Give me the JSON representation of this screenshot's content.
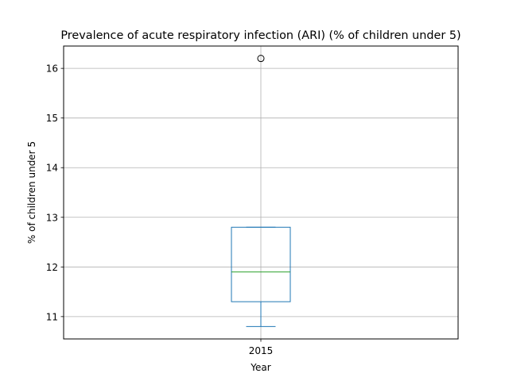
{
  "chart_data": {
    "type": "box",
    "title": "Prevalence of acute respiratory infection (ARI) (% of children under 5)",
    "xlabel": "Year",
    "ylabel": "% of children under 5",
    "categories": [
      "2015"
    ],
    "boxes": [
      {
        "category": "2015",
        "whisker_low": 10.8,
        "q1": 11.3,
        "median": 11.9,
        "q3": 12.8,
        "whisker_high": 12.8,
        "outliers": [
          16.2
        ]
      }
    ],
    "ylim": [
      10.55,
      16.45
    ],
    "yticks": [
      11,
      12,
      13,
      14,
      15,
      16
    ],
    "grid": true,
    "colors": {
      "box": "#1f77b4",
      "median": "#2ca02c",
      "grid": "#b0b0b0",
      "outlier": "#000000"
    }
  }
}
